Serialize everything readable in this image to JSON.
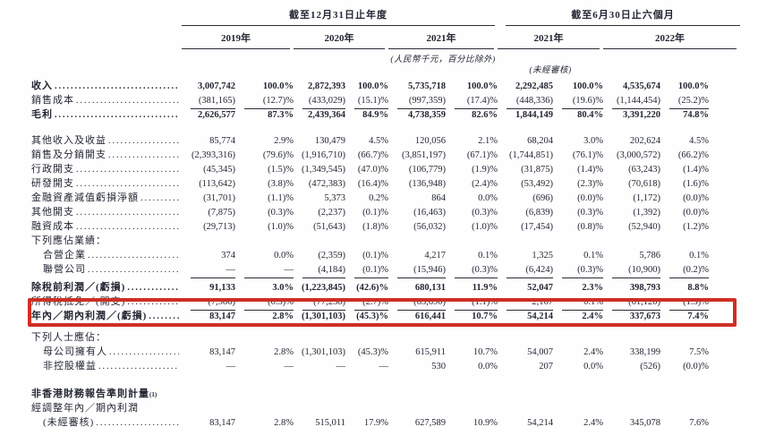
{
  "header": {
    "group_annual": "截至12月31日止年度",
    "group_interim": "截至6月30日止六個月",
    "years": [
      "2019年",
      "2020年",
      "2021年",
      "2021年",
      "2022年"
    ],
    "note_currency": "(人民幣千元，百分比除外)",
    "note_unaudited": "(未經審核)"
  },
  "table": {
    "rows": [
      {
        "label": "收入",
        "bold": true,
        "leader": true,
        "values": [
          "3,007,742",
          "100.0%",
          "2,872,393",
          "100.0%",
          "5,735,718",
          "100.0%",
          "2,292,485",
          "100.0%",
          "4,535,674",
          "100.0%"
        ]
      },
      {
        "label": "銷售成本",
        "leader": true,
        "rule": true,
        "values": [
          "(381,165)",
          "(12.7)%",
          "(433,029)",
          "(15.1)%",
          "(997,359)",
          "(17.4)%",
          "(448,336)",
          "(19.6)%",
          "(1,144,454)",
          "(25.2)%"
        ]
      },
      {
        "label": "毛利",
        "bold": true,
        "leader": true,
        "values": [
          "2,626,577",
          "87.3%",
          "2,439,364",
          "84.9%",
          "4,738,359",
          "82.6%",
          "1,844,149",
          "80.4%",
          "3,391,220",
          "74.8%"
        ]
      },
      {
        "label": "其他收入及收益",
        "leader": true,
        "gap_before": 13,
        "values": [
          "85,774",
          "2.9%",
          "130,479",
          "4.5%",
          "120,056",
          "2.1%",
          "68,204",
          "3.0%",
          "202,624",
          "4.5%"
        ]
      },
      {
        "label": "銷售及分銷開支",
        "leader": true,
        "values": [
          "(2,393,316)",
          "(79.6)%",
          "(1,916,710)",
          "(66.7)%",
          "(3,851,197)",
          "(67.1)%",
          "(1,744,851)",
          "(76.1)%",
          "(3,000,572)",
          "(66.2)%"
        ]
      },
      {
        "label": "行政開支",
        "leader": true,
        "values": [
          "(45,345)",
          "(1.5)%",
          "(1,349,545)",
          "(47.0)%",
          "(106,779)",
          "(1.9)%",
          "(31,875)",
          "(1.4)%",
          "(63,243)",
          "(1.4)%"
        ]
      },
      {
        "label": "研發開支",
        "leader": true,
        "values": [
          "(113,642)",
          "(3.8)%",
          "(472,383)",
          "(16.4)%",
          "(136,948)",
          "(2.4)%",
          "(53,492)",
          "(2.3)%",
          "(70,618)",
          "(1.6)%"
        ]
      },
      {
        "label": "金融資產減值虧損淨額",
        "leader": true,
        "values": [
          "(31,701)",
          "(1.1)%",
          "5,373",
          "0.2%",
          "864",
          "0.0%",
          "(696)",
          "(0.0)%",
          "(1,172)",
          "(0.0)%"
        ]
      },
      {
        "label": "其他開支",
        "leader": true,
        "values": [
          "(7,875)",
          "(0.3)%",
          "(2,237)",
          "(0.1)%",
          "(16,463)",
          "(0.3)%",
          "(6,839)",
          "(0.3)%",
          "(1,392)",
          "(0.0)%"
        ]
      },
      {
        "label": "融資成本",
        "leader": true,
        "values": [
          "(29,713)",
          "(1.0)%",
          "(51,643)",
          "(1.8)%",
          "(56,032)",
          "(1.0)%",
          "(17,454)",
          "(0.8)%",
          "(52,940)",
          "(1.2)%"
        ]
      },
      {
        "label": "下列應佔業績：",
        "values": []
      },
      {
        "label": "合營企業",
        "indent": true,
        "leader": true,
        "values": [
          "374",
          "0.0%",
          "(2,359)",
          "(0.1)%",
          "4,217",
          "0.1%",
          "1,325",
          "0.1%",
          "5,786",
          "0.1%"
        ]
      },
      {
        "label": "聯營公司",
        "indent": true,
        "leader": true,
        "rule": true,
        "values": [
          "—",
          "—",
          "(4,184)",
          "(0.1)%",
          "(15,946)",
          "(0.3)%",
          "(6,424)",
          "(0.3)%",
          "(10,900)",
          "(0.2)%"
        ]
      },
      {
        "label": "除稅前利潤／(虧損)",
        "bold": true,
        "leader": true,
        "gap_before": 4,
        "values": [
          "91,133",
          "3.0%",
          "(1,223,845)",
          "(42.6)%",
          "680,131",
          "11.9%",
          "52,047",
          "2.3%",
          "398,793",
          "8.8%"
        ]
      },
      {
        "label": "所得稅抵免／(開支)",
        "leader": true,
        "rule": true,
        "values": [
          "(7,986)",
          "(0.3)%",
          "(77,258)",
          "(2.7)%",
          "(63,690)",
          "(1.1)%",
          "2,167",
          "0.1%",
          "(61,120)",
          "(1.3)%"
        ]
      },
      {
        "label": "年內／期內利潤／(虧損)",
        "bold": true,
        "leader": true,
        "rule": true,
        "highlight": true,
        "values": [
          "83,147",
          "2.8%",
          "(1,301,103)",
          "(45.3)%",
          "616,441",
          "10.7%",
          "54,214",
          "2.4%",
          "337,673",
          "7.4%"
        ]
      },
      {
        "label": "下列人士應佔：",
        "gap_before": 8,
        "values": []
      },
      {
        "label": "母公司擁有人",
        "indent": true,
        "leader": true,
        "values": [
          "83,147",
          "2.8%",
          "(1,301,103)",
          "(45.3)%",
          "615,911",
          "10.7%",
          "54,007",
          "2.4%",
          "338,199",
          "7.5%"
        ]
      },
      {
        "label": "非控股權益",
        "indent": true,
        "leader": true,
        "values": [
          "—",
          "—",
          "—",
          "—",
          "530",
          "0.0%",
          "207",
          "0.0%",
          "(526)",
          "(0.0)%"
        ]
      },
      {
        "label": "非香港財務報告準則計量",
        "sup": "(1)",
        "bold": true,
        "gap_before": 15,
        "values": []
      },
      {
        "label": "經調整年內／期內利潤",
        "values": []
      },
      {
        "label": "(未經審核)",
        "indent": true,
        "leader": true,
        "values": [
          "83,147",
          "2.8%",
          "515,011",
          "17.9%",
          "627,589",
          "10.9%",
          "54,214",
          "2.4%",
          "345,078",
          "7.6%"
        ]
      }
    ]
  },
  "annotation": {
    "highlight_color": "#ce2f25"
  }
}
